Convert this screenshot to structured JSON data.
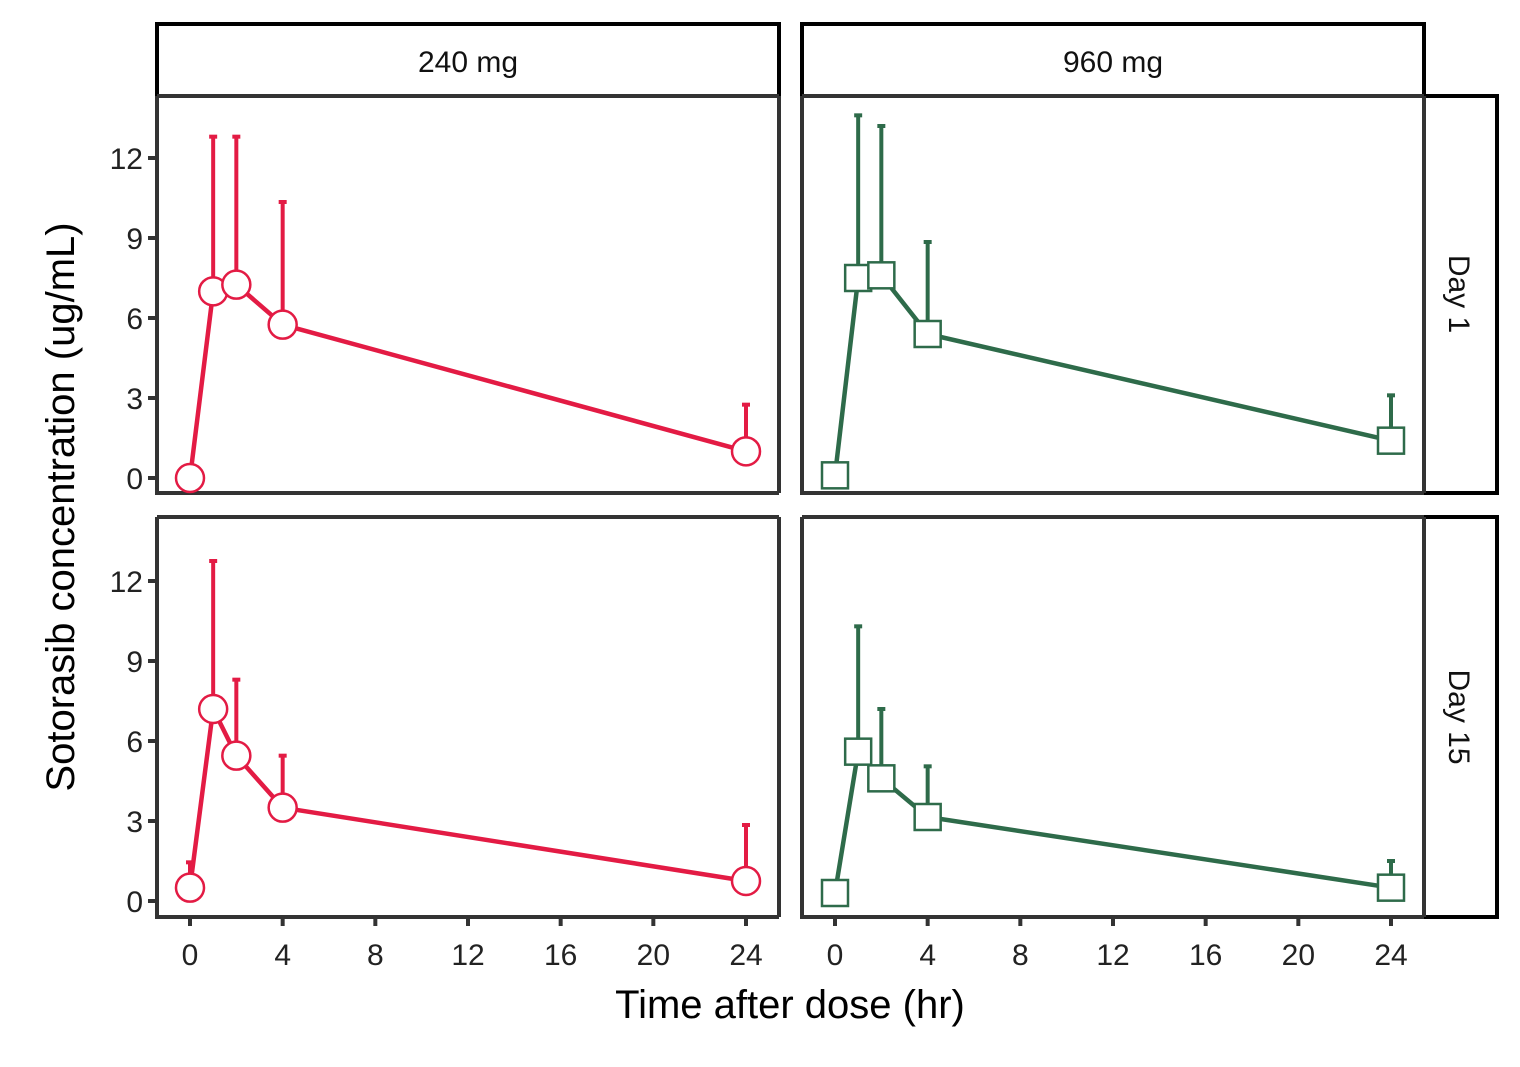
{
  "chart_data": {
    "type": "line",
    "xlabel": "Time after dose (hr)",
    "ylabel": "Sotorasib concentration (ug/mL)",
    "xlim": [
      -1.2,
      25.3
    ],
    "ylim": [
      -0.6,
      13.8
    ],
    "x_ticks": [
      0,
      4,
      8,
      12,
      16,
      20,
      24
    ],
    "y_ticks": [
      0,
      3,
      6,
      9,
      12
    ],
    "grid": false,
    "column_strips": [
      "240 mg",
      "960 mg"
    ],
    "row_strips": [
      "Day 1",
      "Day 15"
    ],
    "colors": {
      "240 mg": "#E31B44",
      "960 mg": "#2E6B4A"
    },
    "markers": {
      "240 mg": "circle",
      "960 mg": "square"
    },
    "panels": [
      {
        "dose": "240 mg",
        "day": "Day 1",
        "x": [
          0,
          1,
          2,
          4,
          24
        ],
        "y": [
          0.0,
          7.0,
          7.25,
          5.75,
          1.0
        ],
        "upper": [
          null,
          12.8,
          12.8,
          10.35,
          2.75
        ]
      },
      {
        "dose": "960 mg",
        "day": "Day 1",
        "x": [
          0,
          1,
          2,
          4,
          24
        ],
        "y": [
          0.1,
          7.5,
          7.6,
          5.4,
          1.4
        ],
        "upper": [
          null,
          13.6,
          13.2,
          8.85,
          3.1
        ]
      },
      {
        "dose": "240 mg",
        "day": "Day 15",
        "x": [
          0,
          1,
          2,
          4,
          24
        ],
        "y": [
          0.5,
          7.2,
          5.45,
          3.5,
          0.75
        ],
        "upper": [
          1.45,
          12.75,
          8.3,
          5.45,
          2.85
        ]
      },
      {
        "dose": "960 mg",
        "day": "Day 15",
        "x": [
          0,
          1,
          2,
          4,
          24
        ],
        "y": [
          0.3,
          5.6,
          4.6,
          3.15,
          0.5
        ],
        "upper": [
          null,
          10.3,
          7.2,
          5.05,
          1.5
        ]
      }
    ]
  }
}
